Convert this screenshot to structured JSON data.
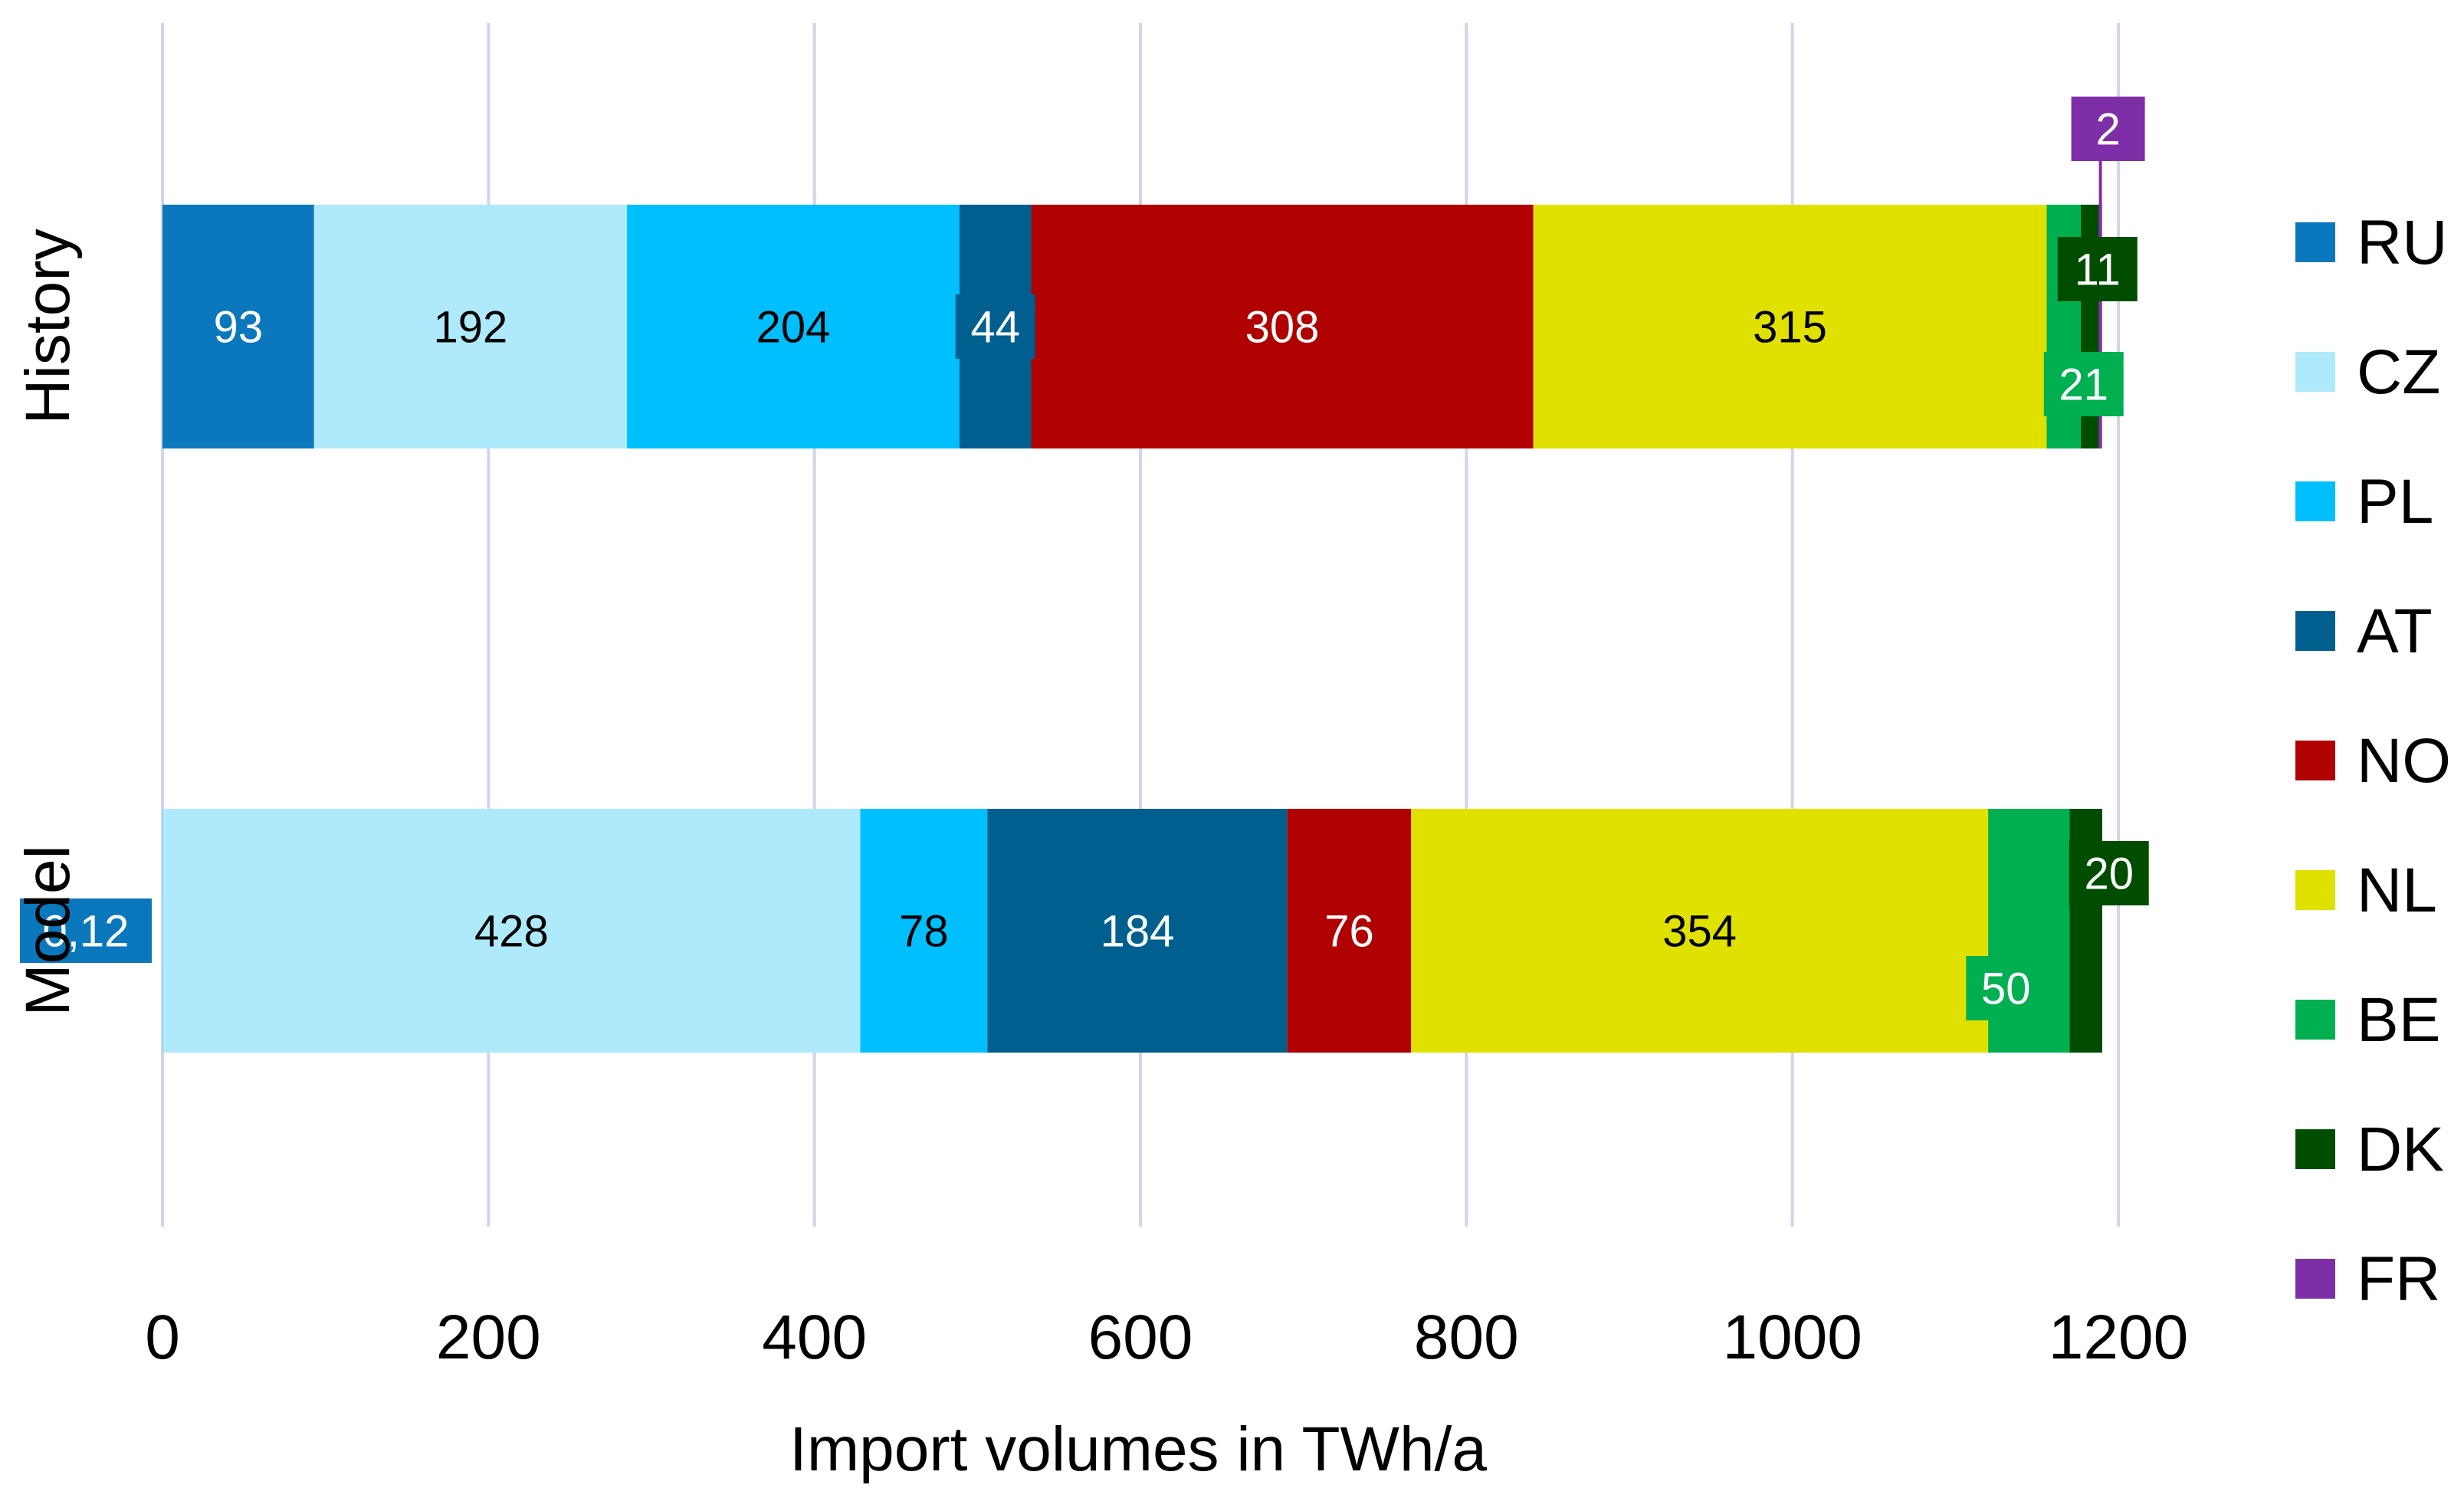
{
  "chart_data": {
    "type": "bar",
    "orientation": "horizontal",
    "stacked": true,
    "categories": [
      "History",
      "Model"
    ],
    "xlabel": "Import volumes in TWh/a",
    "ylabel": "",
    "xlim": [
      0,
      1200
    ],
    "xticks": [
      0,
      200,
      400,
      600,
      800,
      1000,
      1200
    ],
    "grid": true,
    "legend_position": "right",
    "series": [
      {
        "name": "RU",
        "color": "#0B78BD",
        "values": [
          93,
          0.12
        ],
        "labels": [
          "93",
          "0,12"
        ],
        "label_color": "#ffffff"
      },
      {
        "name": "CZ",
        "color": "#AEEAFB",
        "values": [
          192,
          428
        ],
        "labels": [
          "192",
          "428"
        ],
        "label_color": "#000000"
      },
      {
        "name": "PL",
        "color": "#00BFFF",
        "values": [
          204,
          78
        ],
        "labels": [
          "204",
          "78"
        ],
        "label_color": "#000000"
      },
      {
        "name": "AT",
        "color": "#005F8E",
        "values": [
          44,
          184
        ],
        "labels": [
          "44",
          "184"
        ],
        "label_color": "#ffffff"
      },
      {
        "name": "NO",
        "color": "#B00000",
        "values": [
          308,
          76
        ],
        "labels": [
          "308",
          "76"
        ],
        "label_color": "#ffffff"
      },
      {
        "name": "NL",
        "color": "#E1E100",
        "values": [
          315,
          354
        ],
        "labels": [
          "315",
          "354"
        ],
        "label_color": "#000000"
      },
      {
        "name": "BE",
        "color": "#00B050",
        "values": [
          21,
          50
        ],
        "labels": [
          "21",
          "50"
        ],
        "label_color": "#ffffff"
      },
      {
        "name": "DK",
        "color": "#004D00",
        "values": [
          11,
          20
        ],
        "labels": [
          "11",
          "20"
        ],
        "label_color": "#ffffff"
      },
      {
        "name": "FR",
        "color": "#7E2FA8",
        "values": [
          2,
          0
        ],
        "labels": [
          "2",
          ""
        ],
        "label_color": "#ffffff"
      }
    ]
  }
}
